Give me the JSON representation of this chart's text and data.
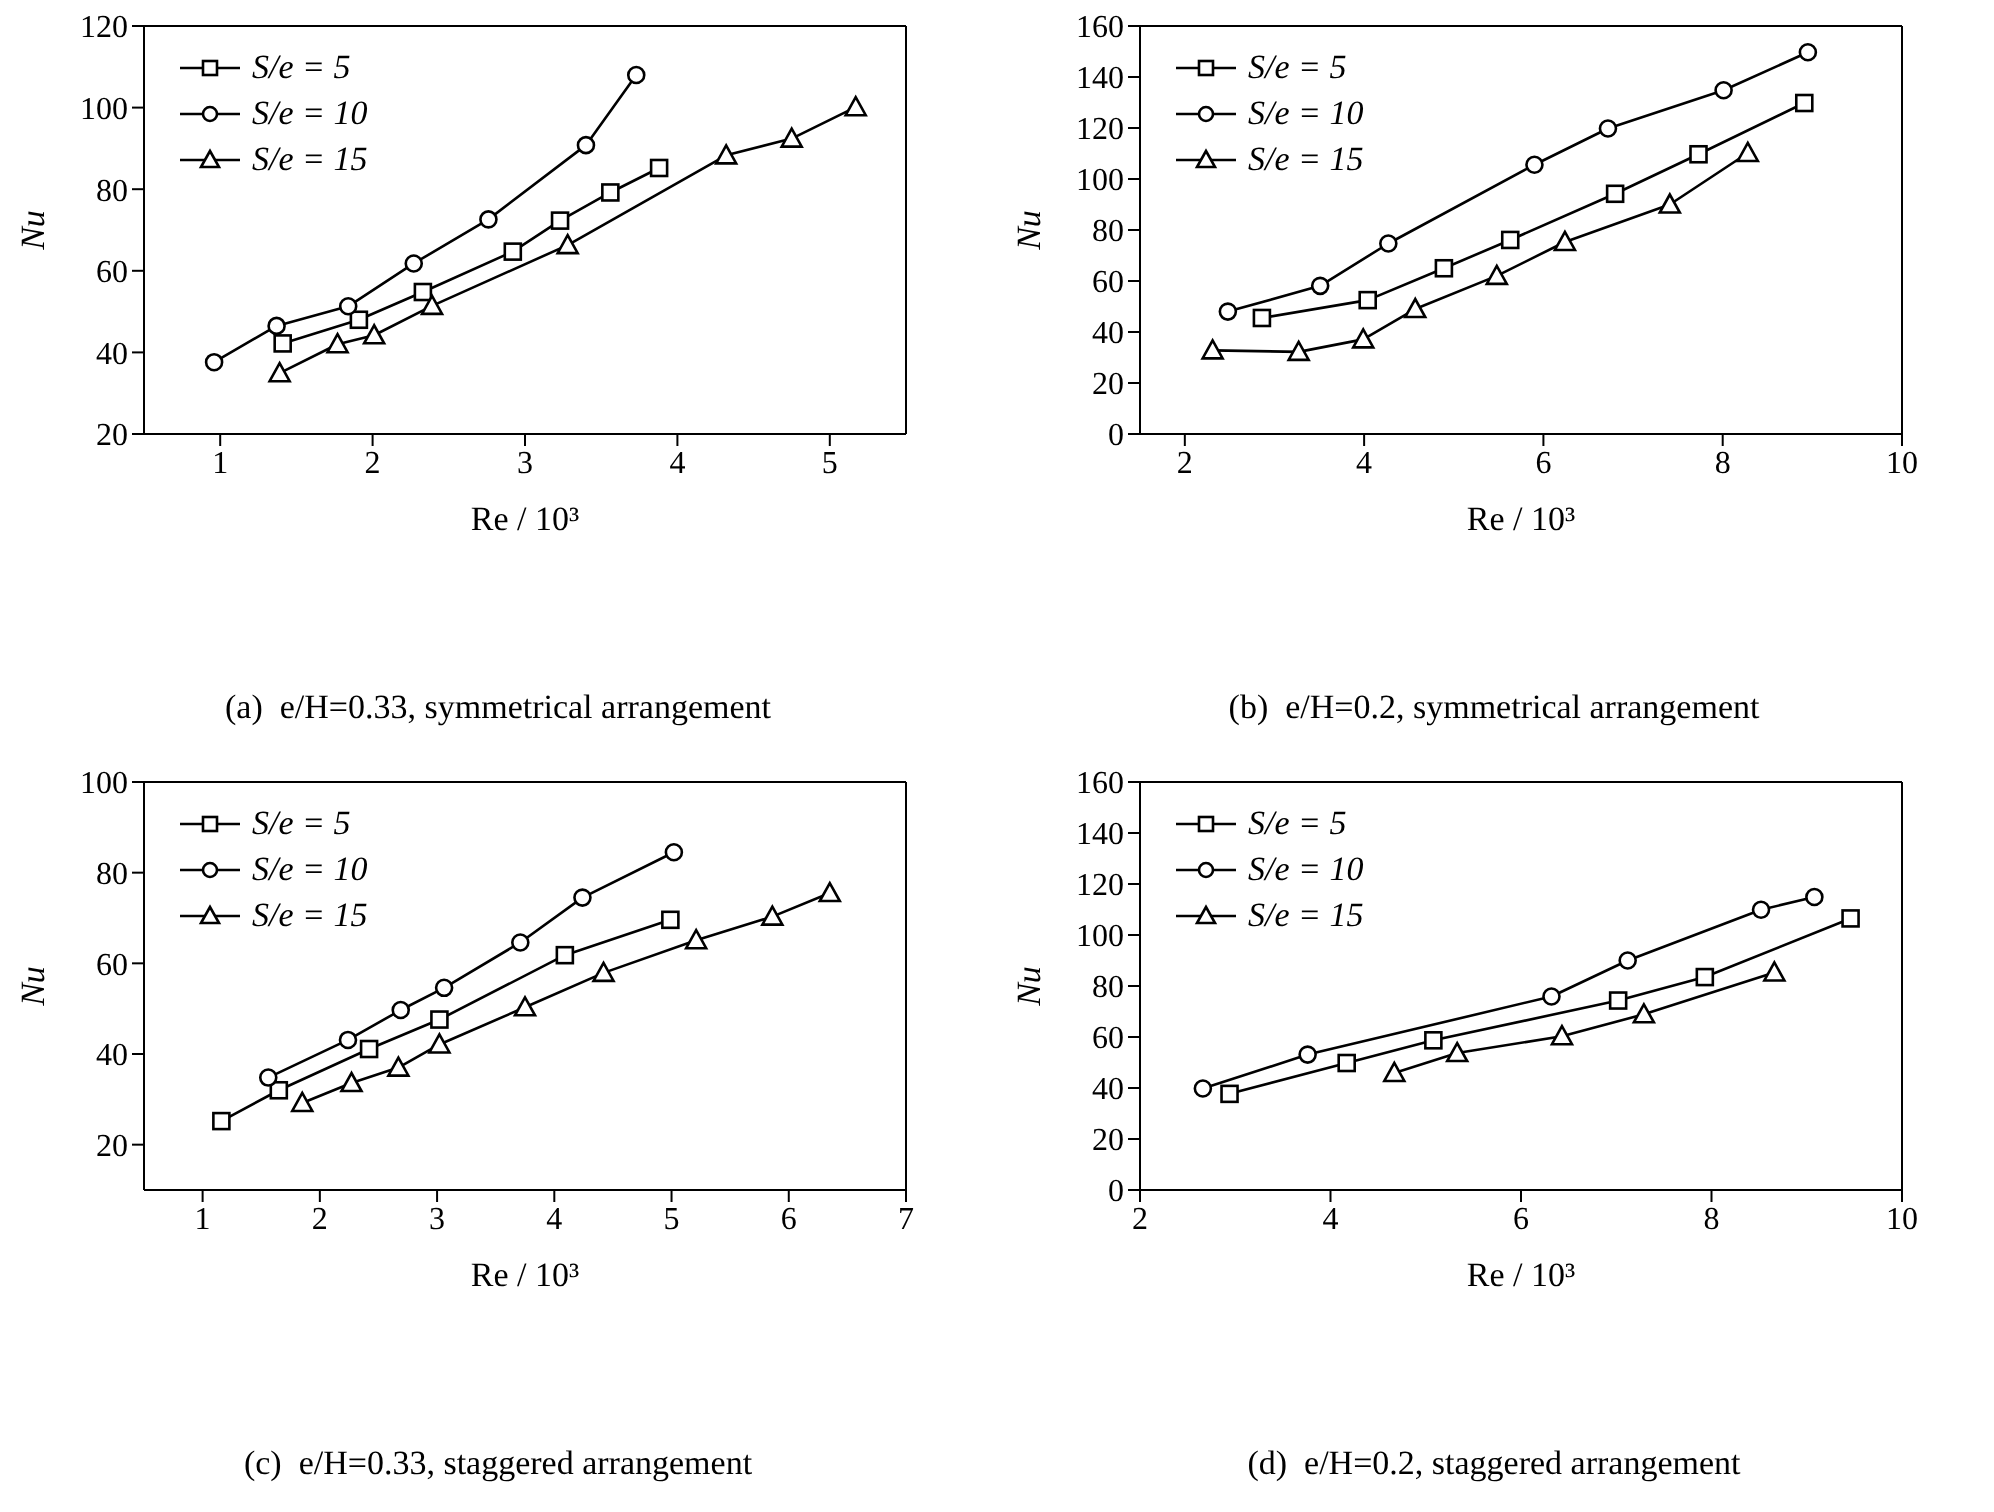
{
  "chart_data": [
    {
      "type": "line",
      "title": "(a)  e/H=0.33, symmetrical arrangement",
      "xlabel": "Re / 10³",
      "ylabel": "Nu",
      "xlim": [
        0.5,
        5.5
      ],
      "xticks": [
        1,
        2,
        3,
        4,
        5
      ],
      "ylim": [
        20,
        120
      ],
      "yticks": [
        20,
        40,
        60,
        80,
        100,
        120
      ],
      "legend": "top left",
      "series": [
        {
          "name": "S/e = 5",
          "color": "#000000",
          "marker": "square",
          "x": [
            1.41,
            1.91,
            2.33,
            2.92,
            3.23,
            3.56,
            3.88
          ],
          "values": [
            42.2,
            48.0,
            54.8,
            64.7,
            72.3,
            79.2,
            85.2
          ]
        },
        {
          "name": "S/e = 10",
          "color": "#000000",
          "marker": "circle",
          "x": [
            0.96,
            1.37,
            1.84,
            2.27,
            2.76,
            3.4,
            3.73
          ],
          "values": [
            37.6,
            46.5,
            51.3,
            61.8,
            72.6,
            90.8,
            108.0
          ]
        },
        {
          "name": "S/e = 15",
          "color": "#000000",
          "marker": "triangle",
          "x": [
            1.39,
            1.77,
            2.01,
            2.39,
            3.28,
            4.32,
            4.75,
            5.17
          ],
          "values": [
            34.9,
            42.0,
            44.2,
            51.4,
            66.3,
            88.3,
            92.4,
            100.1
          ]
        }
      ]
    },
    {
      "type": "line",
      "title": "(b)  e/H=0.2, symmetrical arrangement",
      "xlabel": "Re / 10³",
      "ylabel": "Nu",
      "xlim": [
        1.5,
        10
      ],
      "xticks": [
        2,
        4,
        6,
        8,
        10
      ],
      "ylim": [
        0,
        160
      ],
      "yticks": [
        0,
        20,
        40,
        60,
        80,
        100,
        120,
        140,
        160
      ],
      "legend": "top left",
      "series": [
        {
          "name": "S/e = 5",
          "color": "#000000",
          "marker": "square",
          "x": [
            2.86,
            4.04,
            4.89,
            5.63,
            6.8,
            7.73,
            8.91
          ],
          "values": [
            45.5,
            52.5,
            65.0,
            76.1,
            94.2,
            109.7,
            129.8
          ]
        },
        {
          "name": "S/e = 10",
          "color": "#000000",
          "marker": "circle",
          "x": [
            2.48,
            3.51,
            4.27,
            5.9,
            6.72,
            8.01,
            8.95
          ],
          "values": [
            48.0,
            58.1,
            74.7,
            105.6,
            119.8,
            134.8,
            149.7
          ]
        },
        {
          "name": "S/e = 15",
          "color": "#000000",
          "marker": "triangle",
          "x": [
            2.31,
            3.27,
            3.99,
            4.57,
            5.48,
            6.24,
            7.41,
            8.28
          ],
          "values": [
            32.8,
            32.2,
            37.1,
            49.0,
            62.0,
            75.3,
            90.0,
            110.2
          ]
        }
      ]
    },
    {
      "type": "line",
      "title": "(c)  e/H=0.33, staggered arrangement",
      "xlabel": "Re / 10³",
      "ylabel": "Nu",
      "xlim": [
        0.5,
        7
      ],
      "xticks": [
        1,
        2,
        3,
        4,
        5,
        6,
        7
      ],
      "ylim": [
        10,
        100
      ],
      "yticks": [
        20,
        40,
        60,
        80,
        100
      ],
      "legend": "top left",
      "series": [
        {
          "name": "S/e = 5",
          "color": "#000000",
          "marker": "square",
          "x": [
            1.16,
            1.65,
            2.42,
            3.02,
            4.09,
            4.99
          ],
          "values": [
            25.2,
            32.0,
            41.1,
            47.6,
            61.8,
            69.6
          ]
        },
        {
          "name": "S/e = 10",
          "color": "#000000",
          "marker": "circle",
          "x": [
            1.56,
            2.24,
            2.69,
            3.06,
            3.71,
            4.24,
            5.02
          ],
          "values": [
            34.8,
            43.1,
            49.7,
            54.6,
            64.6,
            74.5,
            84.5
          ]
        },
        {
          "name": "S/e = 15",
          "color": "#000000",
          "marker": "triangle",
          "x": [
            1.85,
            2.27,
            2.67,
            3.02,
            3.75,
            4.42,
            5.21,
            5.86,
            6.35
          ],
          "values": [
            29.2,
            33.6,
            37.0,
            42.1,
            50.3,
            57.9,
            65.1,
            70.3,
            75.5
          ]
        }
      ]
    },
    {
      "type": "line",
      "title": "(d)  e/H=0.2, staggered arrangement",
      "xlabel": "Re / 10³",
      "ylabel": "Nu",
      "xlim": [
        2,
        10
      ],
      "xticks": [
        2,
        4,
        6,
        8,
        10
      ],
      "ylim": [
        0,
        160
      ],
      "yticks": [
        0,
        20,
        40,
        60,
        80,
        100,
        120,
        140,
        160
      ],
      "legend": "top left",
      "series": [
        {
          "name": "S/e = 5",
          "color": "#000000",
          "marker": "square",
          "x": [
            2.94,
            4.17,
            5.08,
            7.02,
            7.93,
            9.46
          ],
          "values": [
            37.7,
            49.8,
            58.7,
            74.3,
            83.5,
            106.5
          ]
        },
        {
          "name": "S/e = 10",
          "color": "#000000",
          "marker": "circle",
          "x": [
            2.66,
            3.76,
            6.32,
            7.12,
            8.52,
            9.08
          ],
          "values": [
            39.8,
            53.1,
            75.9,
            90.0,
            109.9,
            114.9
          ]
        },
        {
          "name": "S/e = 15",
          "color": "#000000",
          "marker": "triangle",
          "x": [
            4.67,
            5.33,
            6.43,
            7.29,
            8.66
          ],
          "values": [
            45.9,
            53.7,
            60.3,
            68.9,
            85.3
          ]
        }
      ]
    }
  ]
}
